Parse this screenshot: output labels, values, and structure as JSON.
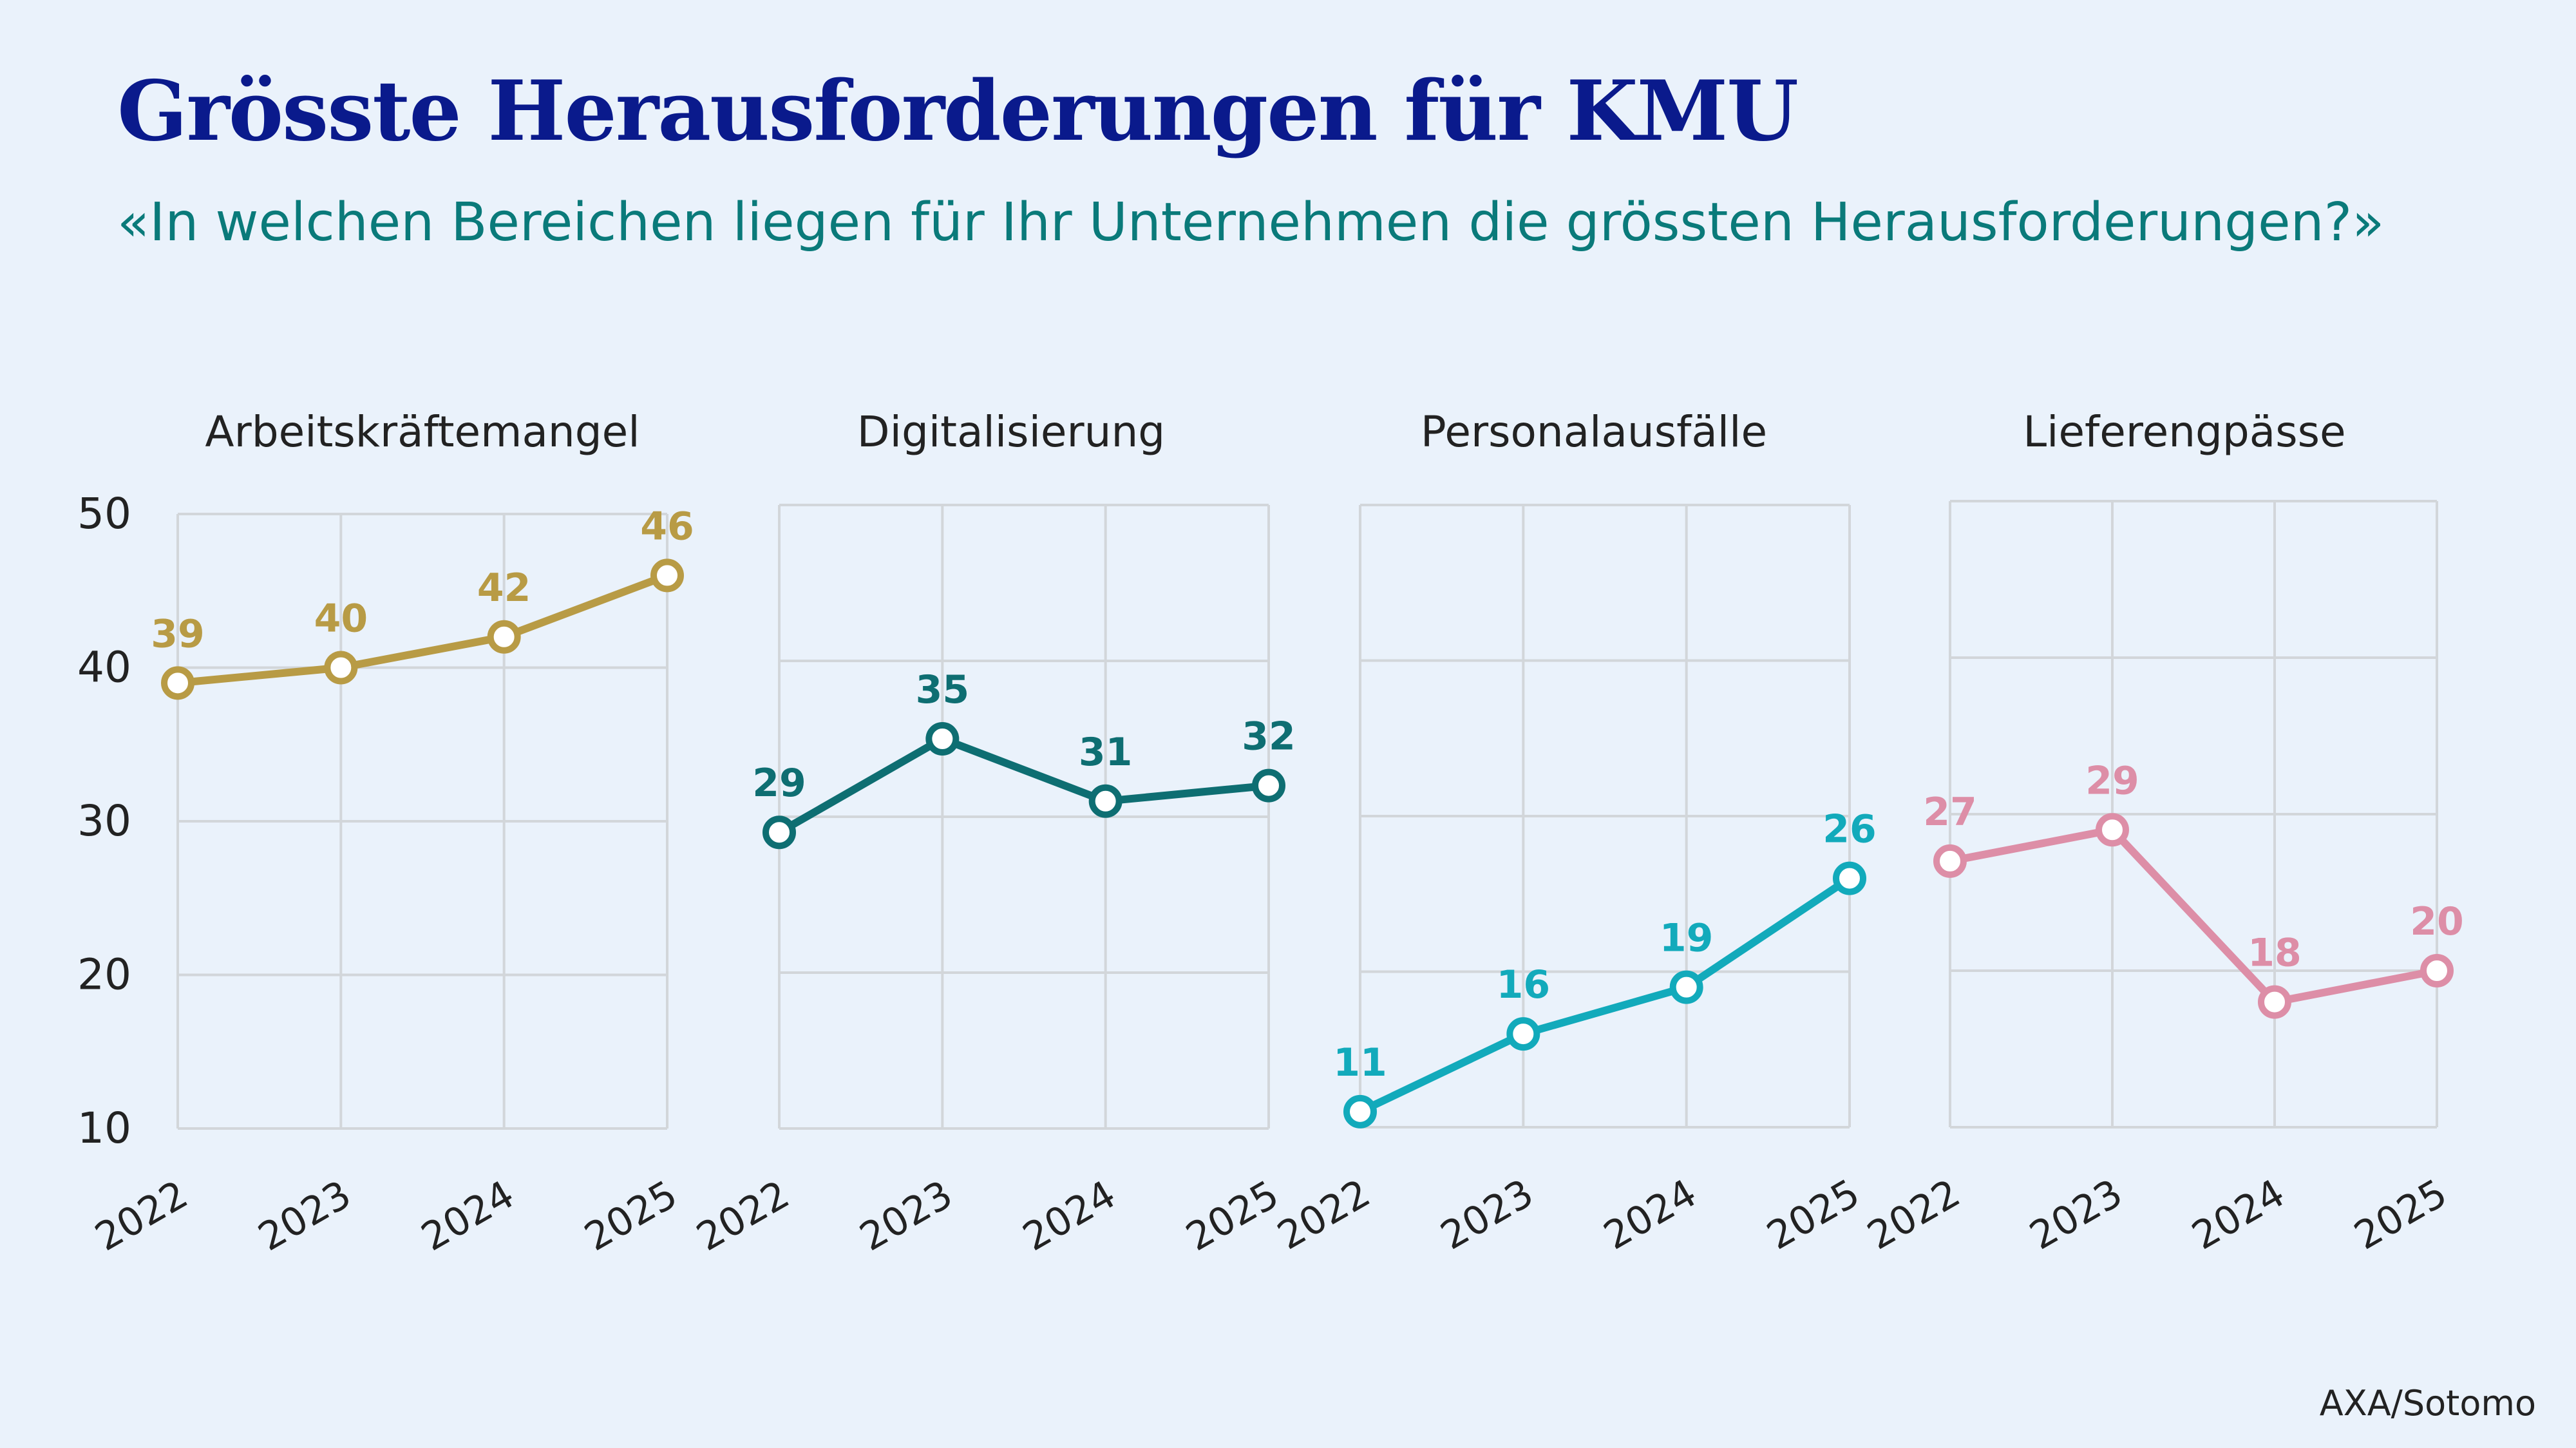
{
  "header": {
    "title": "Grösste Herausforderungen für KMU",
    "subtitle": "«In welchen Bereichen liegen für Ihr Unternehmen die grössten Herausforderungen?»"
  },
  "source": "AXA/Sotomo",
  "chart_data": [
    {
      "type": "line",
      "title": "Arbeitskräftemangel",
      "x": [
        "2022",
        "2023",
        "2024",
        "2025"
      ],
      "values": [
        39,
        40,
        42,
        46
      ],
      "ylim": [
        10,
        50
      ],
      "yticks": [
        10,
        20,
        30,
        40,
        50
      ],
      "color": "#b89b45",
      "grid": true
    },
    {
      "type": "line",
      "title": "Digitalisierung",
      "x": [
        "2022",
        "2023",
        "2024",
        "2025"
      ],
      "values": [
        29,
        35,
        31,
        32
      ],
      "ylim": [
        10,
        50
      ],
      "color": "#0e6e72",
      "grid": true
    },
    {
      "type": "line",
      "title": "Personalausfälle",
      "x": [
        "2022",
        "2023",
        "2024",
        "2025"
      ],
      "values": [
        11,
        16,
        19,
        26
      ],
      "ylim": [
        10,
        50
      ],
      "color": "#12aabb",
      "grid": true
    },
    {
      "type": "line",
      "title": "Lieferengpässe",
      "x": [
        "2022",
        "2023",
        "2024",
        "2025"
      ],
      "values": [
        27,
        29,
        18,
        20
      ],
      "ylim": [
        10,
        50
      ],
      "color": "#dd8ea7",
      "grid": true
    }
  ]
}
